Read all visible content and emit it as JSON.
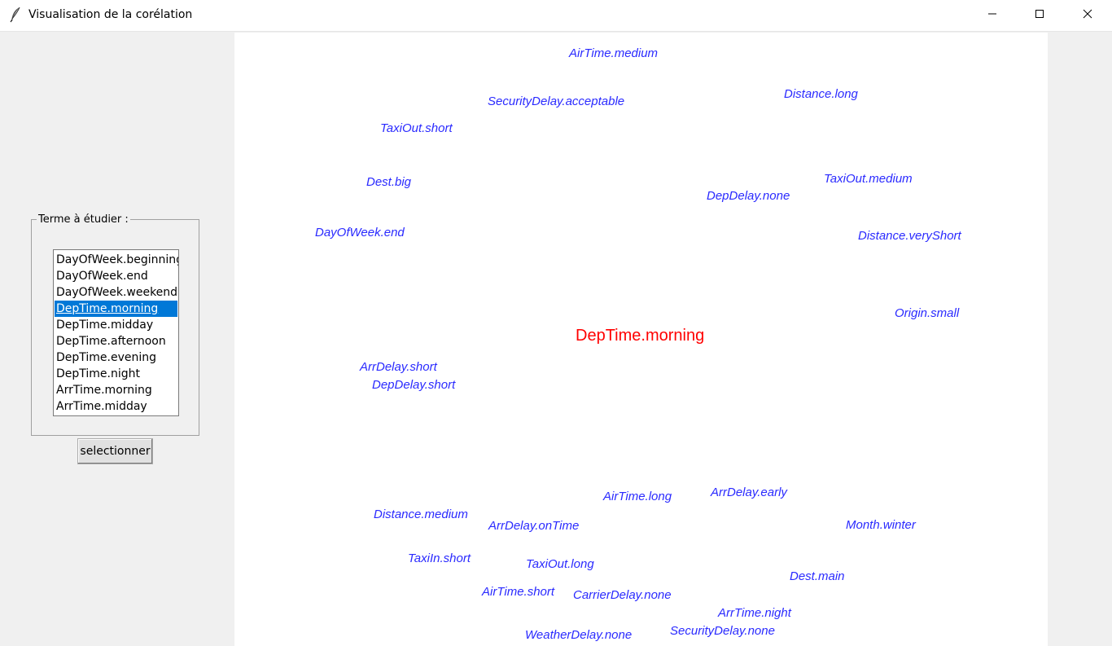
{
  "window": {
    "title": "Visualisation de la corélation"
  },
  "panel": {
    "legend": "Terme à étudier :",
    "items": [
      "DayOfWeek.beginning",
      "DayOfWeek.end",
      "DayOfWeek.weekend",
      "DepTime.morning",
      "DepTime.midday",
      "DepTime.afternoon",
      "DepTime.evening",
      "DepTime.night",
      "ArrTime.morning",
      "ArrTime.midday"
    ],
    "selected_index": 3,
    "button_label": "selectionner"
  },
  "canvas": {
    "center_term": "DepTime.morning",
    "center_color": "#ff0000",
    "term_color": "#2a2aff",
    "terms": [
      "AirTime.medium",
      "SecurityDelay.acceptable",
      "Distance.long",
      "TaxiOut.short",
      "Dest.big",
      "TaxiOut.medium",
      "DepDelay.none",
      "DayOfWeek.end",
      "Distance.veryShort",
      "Origin.small",
      "ArrDelay.short",
      "DepDelay.short",
      "AirTime.long",
      "ArrDelay.early",
      "Distance.medium",
      "ArrDelay.onTime",
      "Month.winter",
      "TaxiIn.short",
      "TaxiOut.long",
      "Dest.main",
      "AirTime.short",
      "CarrierDelay.none",
      "ArrTime.night",
      "SecurityDelay.none",
      "WeatherDelay.none"
    ]
  },
  "icons": {
    "app": "feather-icon",
    "minimize": "minimize-icon",
    "maximize": "maximize-icon",
    "close": "close-icon"
  }
}
